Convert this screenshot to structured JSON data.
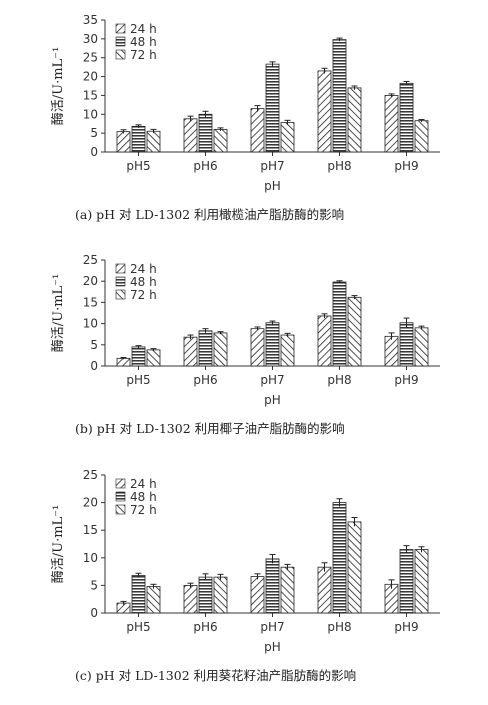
{
  "chart_data": [
    {
      "type": "bar",
      "categories": [
        "pH5",
        "pH6",
        "pH7",
        "pH8",
        "pH9"
      ],
      "series": [
        {
          "name": "24 h",
          "values": [
            5.4,
            8.8,
            11.5,
            21.5,
            15.0
          ]
        },
        {
          "name": "48 h",
          "values": [
            6.8,
            10.0,
            23.3,
            29.8,
            18.2
          ]
        },
        {
          "name": "72 h",
          "values": [
            5.5,
            6.0,
            7.8,
            17.0,
            8.3
          ]
        }
      ],
      "errors": [
        [
          0.5,
          0.7,
          0.8,
          0.7,
          0.4
        ],
        [
          0.4,
          0.8,
          0.6,
          0.4,
          0.5
        ],
        [
          0.5,
          0.4,
          0.6,
          0.5,
          0.3
        ]
      ],
      "ylim": [
        0,
        35
      ],
      "yticks": [
        0,
        5,
        10,
        15,
        20,
        25,
        30,
        35
      ],
      "xlabel": "pH",
      "ylabel": "酶活/U·mL⁻¹",
      "caption": "(a) pH 对 LD-1302 利用橄榄油产脂肪酶的影响",
      "legend_position": "top-left",
      "grid": false
    },
    {
      "type": "bar",
      "categories": [
        "pH5",
        "pH6",
        "pH7",
        "pH8",
        "pH9"
      ],
      "series": [
        {
          "name": "24 h",
          "values": [
            1.8,
            6.8,
            8.8,
            11.8,
            7.0
          ]
        },
        {
          "name": "48 h",
          "values": [
            4.5,
            8.3,
            10.2,
            19.8,
            10.2
          ]
        },
        {
          "name": "72 h",
          "values": [
            3.8,
            7.8,
            7.3,
            16.2,
            9.0
          ]
        }
      ],
      "errors": [
        [
          0.2,
          0.5,
          0.4,
          0.5,
          0.8
        ],
        [
          0.3,
          0.5,
          0.4,
          0.3,
          1.1
        ],
        [
          0.3,
          0.3,
          0.4,
          0.4,
          0.4
        ]
      ],
      "ylim": [
        0,
        25
      ],
      "yticks": [
        0,
        5,
        10,
        15,
        20,
        25
      ],
      "xlabel": "pH",
      "ylabel": "酶活/U·mL⁻¹",
      "caption": "(b) pH 对 LD-1302 利用椰子油产脂肪酶的影响",
      "legend_position": "top-left",
      "grid": false
    },
    {
      "type": "bar",
      "categories": [
        "pH5",
        "pH6",
        "pH7",
        "pH8",
        "pH9"
      ],
      "series": [
        {
          "name": "24 h",
          "values": [
            1.8,
            5.0,
            6.6,
            8.3,
            5.2
          ]
        },
        {
          "name": "48 h",
          "values": [
            6.8,
            6.5,
            9.8,
            20.0,
            11.5
          ]
        },
        {
          "name": "72 h",
          "values": [
            4.8,
            6.5,
            8.3,
            16.5,
            11.5
          ]
        }
      ],
      "errors": [
        [
          0.3,
          0.4,
          0.5,
          0.8,
          0.8
        ],
        [
          0.4,
          0.6,
          0.8,
          0.7,
          0.7
        ],
        [
          0.4,
          0.5,
          0.5,
          0.8,
          0.5
        ]
      ],
      "ylim": [
        0,
        25
      ],
      "yticks": [
        0,
        5,
        10,
        15,
        20,
        25
      ],
      "xlabel": "pH",
      "ylabel": "酶活/U·mL⁻¹",
      "caption": "(c) pH 对 LD-1302 利用葵花籽油产脂肪酶的影响",
      "legend_position": "top-left",
      "grid": false
    }
  ]
}
